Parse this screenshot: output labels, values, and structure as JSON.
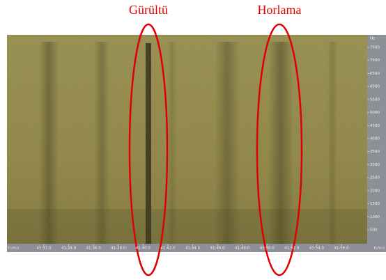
{
  "annotations": [
    {
      "label": "Gürültü"
    },
    {
      "label": "Horlama"
    }
  ],
  "frequency_axis": {
    "unit": "Hz",
    "ticks": [
      "7500",
      "7000",
      "6500",
      "6000",
      "5500",
      "5000",
      "4500",
      "4000",
      "3500",
      "3000",
      "2500",
      "2000",
      "1500",
      "1000",
      "500"
    ]
  },
  "time_axis": {
    "start_label": "h:m:s",
    "end_label": "h:m:s",
    "ticks": [
      "41:32.0",
      "41:34.0",
      "41:36.0",
      "41:38.0",
      "41:40.0",
      "41:42.0",
      "41:44.0",
      "41:46.0",
      "41:48.0",
      "41:50.0",
      "41:52.0",
      "41:54.0",
      "41:56.0"
    ]
  }
}
